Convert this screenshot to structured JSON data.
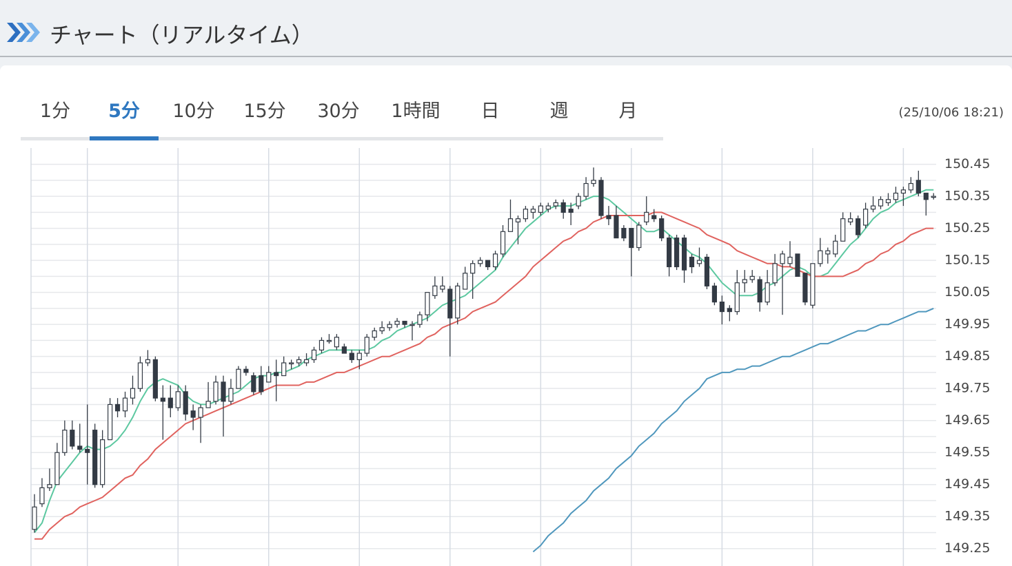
{
  "header": {
    "title": "チャート（リアルタイム）"
  },
  "tabs": [
    "1分",
    "5分",
    "10分",
    "15分",
    "30分",
    "1時間",
    "日",
    "週",
    "月"
  ],
  "active_tab": 1,
  "timestamp": "(25/10/06 18:21)",
  "chart_data": {
    "type": "candlestick",
    "up_color": "#ffffff",
    "down_color": "#333a44",
    "edge_color": "#333a44",
    "open": [
      149.31,
      149.39,
      149.44,
      149.45,
      149.55,
      149.62,
      149.57,
      149.56,
      149.62,
      149.45,
      149.59,
      149.7,
      149.68,
      149.72,
      149.75,
      149.83,
      149.84,
      149.72,
      149.72,
      149.69,
      149.74,
      149.68,
      149.66,
      149.69,
      149.71,
      149.77,
      149.71,
      149.75,
      149.81,
      149.79,
      149.79,
      149.77,
      149.8,
      149.79,
      149.83,
      149.83,
      149.83,
      149.84,
      149.87,
      149.9,
      149.88,
      149.88,
      149.86,
      149.84,
      149.86,
      149.91,
      149.93,
      149.94,
      149.95,
      149.96,
      149.95,
      149.95,
      149.98,
      150.04,
      150.06,
      150.06,
      149.97,
      150.06,
      150.11,
      150.14,
      150.15,
      150.13,
      150.17,
      150.24,
      150.27,
      150.28,
      150.3,
      150.3,
      150.31,
      150.32,
      150.33,
      150.31,
      150.32,
      150.35,
      150.39,
      150.4,
      150.29,
      150.29,
      150.25,
      150.25,
      150.19,
      150.27,
      150.29,
      150.28,
      150.22,
      150.22,
      150.22,
      150.16,
      150.14,
      150.16,
      150.07,
      150.02,
      150.0,
      149.99,
      150.08,
      150.09,
      150.09,
      150.02,
      150.08,
      150.14,
      150.14,
      150.17,
      150.11,
      150.01,
      150.14,
      150.17,
      150.17,
      150.21,
      150.27,
      150.28,
      150.26,
      150.31,
      150.32,
      150.33,
      150.34,
      150.36,
      150.37,
      150.4,
      150.36,
      150.35
    ],
    "high": [
      149.42,
      149.47,
      149.5,
      149.58,
      149.65,
      149.65,
      149.64,
      149.7,
      149.64,
      149.62,
      149.72,
      149.72,
      149.74,
      149.79,
      149.85,
      149.87,
      149.85,
      149.76,
      149.76,
      149.76,
      149.76,
      149.7,
      149.7,
      149.77,
      149.79,
      149.79,
      149.78,
      149.82,
      149.82,
      149.8,
      149.82,
      149.82,
      149.84,
      149.85,
      149.84,
      149.85,
      149.86,
      149.88,
      149.91,
      149.92,
      149.92,
      149.89,
      149.87,
      149.87,
      149.92,
      149.94,
      149.96,
      149.96,
      149.97,
      149.96,
      149.96,
      149.99,
      150.05,
      150.1,
      150.1,
      150.07,
      150.08,
      150.13,
      150.15,
      150.16,
      150.15,
      150.18,
      150.26,
      150.34,
      150.29,
      150.32,
      150.32,
      150.33,
      150.33,
      150.34,
      150.34,
      150.33,
      150.36,
      150.41,
      150.44,
      150.41,
      150.32,
      150.32,
      150.26,
      150.25,
      150.27,
      150.35,
      150.31,
      150.29,
      150.23,
      150.23,
      150.23,
      150.17,
      150.19,
      150.17,
      150.08,
      150.04,
      150.01,
      150.12,
      150.12,
      150.12,
      150.1,
      150.12,
      150.17,
      150.18,
      150.21,
      150.17,
      150.11,
      150.14,
      150.22,
      150.19,
      150.23,
      150.3,
      150.3,
      150.29,
      150.33,
      150.35,
      150.35,
      150.36,
      150.38,
      150.38,
      150.41,
      150.43,
      150.36,
      150.36
    ],
    "low": [
      149.3,
      149.38,
      149.43,
      149.45,
      149.54,
      149.56,
      149.55,
      149.45,
      149.44,
      149.44,
      149.59,
      149.66,
      149.66,
      149.7,
      149.74,
      149.82,
      149.71,
      149.59,
      149.66,
      149.68,
      149.65,
      149.62,
      149.58,
      149.69,
      149.7,
      149.6,
      149.7,
      149.75,
      149.79,
      149.73,
      149.73,
      149.77,
      149.71,
      149.79,
      149.81,
      149.82,
      149.82,
      149.83,
      149.86,
      149.89,
      149.87,
      149.86,
      149.83,
      149.81,
      149.85,
      149.9,
      149.92,
      149.93,
      149.94,
      149.94,
      149.9,
      149.94,
      149.96,
      150.03,
      150.05,
      149.85,
      149.95,
      150.06,
      150.03,
      150.13,
      150.12,
      150.12,
      150.16,
      150.24,
      150.2,
      150.27,
      150.28,
      150.29,
      150.3,
      150.31,
      150.28,
      150.26,
      150.31,
      150.34,
      150.38,
      150.28,
      150.26,
      150.22,
      150.21,
      150.1,
      150.18,
      150.26,
      150.27,
      150.21,
      150.1,
      150.12,
      150.08,
      150.11,
      150.13,
      150.06,
      150.01,
      149.95,
      149.96,
      149.98,
      150.05,
      150.08,
      149.99,
      150.01,
      150.07,
      149.98,
      150.13,
      150.1,
      150.01,
      150.0,
      150.13,
      150.14,
      150.16,
      150.21,
      150.26,
      150.22,
      150.25,
      150.3,
      150.31,
      150.32,
      150.33,
      150.32,
      150.36,
      150.35,
      150.29,
      150.34
    ],
    "close": [
      149.38,
      149.44,
      149.45,
      149.55,
      149.62,
      149.57,
      149.56,
      149.55,
      149.45,
      149.59,
      149.7,
      149.68,
      149.72,
      149.75,
      149.83,
      149.84,
      149.72,
      149.71,
      149.69,
      149.74,
      149.67,
      149.66,
      149.69,
      149.71,
      149.77,
      149.71,
      149.75,
      149.81,
      149.8,
      149.74,
      149.74,
      149.8,
      149.79,
      149.83,
      149.83,
      149.84,
      149.84,
      149.87,
      149.9,
      149.9,
      149.91,
      149.86,
      149.84,
      149.86,
      149.91,
      149.93,
      149.94,
      149.95,
      149.96,
      149.95,
      149.95,
      149.98,
      150.05,
      150.07,
      150.07,
      149.97,
      150.07,
      150.11,
      150.14,
      150.15,
      150.13,
      150.17,
      150.24,
      150.28,
      150.28,
      150.31,
      150.31,
      150.32,
      150.32,
      150.33,
      150.3,
      150.3,
      150.35,
      150.39,
      150.4,
      150.29,
      150.28,
      150.22,
      150.22,
      150.19,
      150.26,
      150.3,
      150.28,
      150.22,
      150.13,
      150.13,
      150.12,
      150.13,
      150.15,
      150.07,
      150.02,
      149.99,
      149.99,
      150.08,
      150.09,
      150.1,
      150.02,
      150.08,
      150.14,
      150.17,
      150.16,
      150.1,
      150.02,
      150.14,
      150.18,
      150.18,
      150.21,
      150.28,
      150.28,
      150.23,
      150.31,
      150.32,
      150.34,
      150.34,
      150.36,
      150.37,
      150.39,
      150.36,
      150.34,
      150.35
    ],
    "overlays": [
      {
        "color": "#5cc8a0",
        "values": [
          149.3,
          149.33,
          149.4,
          149.46,
          149.49,
          149.52,
          149.55,
          149.57,
          149.56,
          149.56,
          149.57,
          149.59,
          149.62,
          149.66,
          149.71,
          149.75,
          149.77,
          149.78,
          149.77,
          149.76,
          149.73,
          149.71,
          149.7,
          149.7,
          149.71,
          149.72,
          149.73,
          149.74,
          149.76,
          149.78,
          149.79,
          149.79,
          149.8,
          149.8,
          149.81,
          149.82,
          149.84,
          149.85,
          149.86,
          149.87,
          149.87,
          149.87,
          149.87,
          149.87,
          149.87,
          149.88,
          149.9,
          149.91,
          149.93,
          149.94,
          149.95,
          149.96,
          149.97,
          149.99,
          150.01,
          150.02,
          150.03,
          150.04,
          150.06,
          150.08,
          150.1,
          150.12,
          150.16,
          150.19,
          150.22,
          150.25,
          150.27,
          150.29,
          150.31,
          150.32,
          150.32,
          150.32,
          150.33,
          150.34,
          150.35,
          150.35,
          150.34,
          150.32,
          150.3,
          150.28,
          150.26,
          150.24,
          150.24,
          150.25,
          150.23,
          150.21,
          150.19,
          150.17,
          150.16,
          150.14,
          150.11,
          150.08,
          150.06,
          150.04,
          150.04,
          150.04,
          150.05,
          150.07,
          150.08,
          150.1,
          150.12,
          150.13,
          150.12,
          150.1,
          150.1,
          150.11,
          150.14,
          150.17,
          150.2,
          150.22,
          150.25,
          150.28,
          150.3,
          150.31,
          150.33,
          150.34,
          150.35,
          150.36,
          150.37,
          150.37
        ]
      },
      {
        "color": "#e0625e",
        "values": [
          149.28,
          149.28,
          149.31,
          149.33,
          149.35,
          149.36,
          149.38,
          149.39,
          149.4,
          149.41,
          149.43,
          149.45,
          149.47,
          149.48,
          149.51,
          149.53,
          149.56,
          149.58,
          149.6,
          149.62,
          149.64,
          149.65,
          149.66,
          149.67,
          149.68,
          149.69,
          149.7,
          149.71,
          149.72,
          149.73,
          149.74,
          149.75,
          149.76,
          149.76,
          149.76,
          149.76,
          149.77,
          149.77,
          149.78,
          149.79,
          149.8,
          149.8,
          149.81,
          149.82,
          149.83,
          149.84,
          149.85,
          149.85,
          149.86,
          149.87,
          149.88,
          149.89,
          149.91,
          149.92,
          149.94,
          149.95,
          149.96,
          149.97,
          149.99,
          150.0,
          150.01,
          150.02,
          150.04,
          150.06,
          150.08,
          150.1,
          150.13,
          150.15,
          150.17,
          150.19,
          150.21,
          150.22,
          150.24,
          150.25,
          150.27,
          150.28,
          150.29,
          150.29,
          150.29,
          150.29,
          150.29,
          150.29,
          150.3,
          150.3,
          150.29,
          150.28,
          150.27,
          150.26,
          150.25,
          150.23,
          150.22,
          150.21,
          150.2,
          150.18,
          150.17,
          150.16,
          150.15,
          150.14,
          150.14,
          150.13,
          150.13,
          150.12,
          150.11,
          150.1,
          150.1,
          150.1,
          150.1,
          150.1,
          150.11,
          150.12,
          150.14,
          150.15,
          150.17,
          150.18,
          150.2,
          150.21,
          150.23,
          150.24,
          150.25,
          150.25
        ]
      },
      {
        "color": "#4f97bd",
        "values": [
          null,
          null,
          null,
          null,
          null,
          null,
          null,
          null,
          null,
          null,
          null,
          null,
          null,
          null,
          null,
          null,
          null,
          null,
          null,
          null,
          null,
          null,
          null,
          null,
          null,
          null,
          null,
          null,
          null,
          null,
          null,
          null,
          null,
          null,
          null,
          null,
          null,
          null,
          null,
          null,
          null,
          null,
          null,
          null,
          null,
          null,
          null,
          null,
          null,
          null,
          null,
          null,
          null,
          null,
          null,
          null,
          null,
          null,
          null,
          null,
          null,
          null,
          null,
          null,
          null,
          null,
          149.24,
          149.26,
          149.29,
          149.31,
          149.33,
          149.36,
          149.38,
          149.4,
          149.43,
          149.45,
          149.47,
          149.5,
          149.52,
          149.54,
          149.57,
          149.59,
          149.61,
          149.64,
          149.66,
          149.68,
          149.71,
          149.73,
          149.75,
          149.78,
          149.79,
          149.8,
          149.8,
          149.81,
          149.81,
          149.82,
          149.82,
          149.83,
          149.84,
          149.85,
          149.85,
          149.86,
          149.87,
          149.88,
          149.89,
          149.89,
          149.9,
          149.91,
          149.92,
          149.93,
          149.93,
          149.94,
          149.95,
          149.95,
          149.96,
          149.97,
          149.98,
          149.99,
          149.99,
          150.0
        ]
      }
    ],
    "ylim": [
      149.2,
      150.49
    ],
    "yticks": [
      149.25,
      149.35,
      149.45,
      149.55,
      149.65,
      149.75,
      149.85,
      149.95,
      150.05,
      150.15,
      150.25,
      150.35,
      150.45
    ],
    "yticks_minor": [
      149.3,
      149.4,
      149.5,
      149.6,
      149.7,
      149.8,
      149.9,
      150,
      150.1,
      150.2,
      150.3,
      150.4
    ],
    "grid": true
  }
}
